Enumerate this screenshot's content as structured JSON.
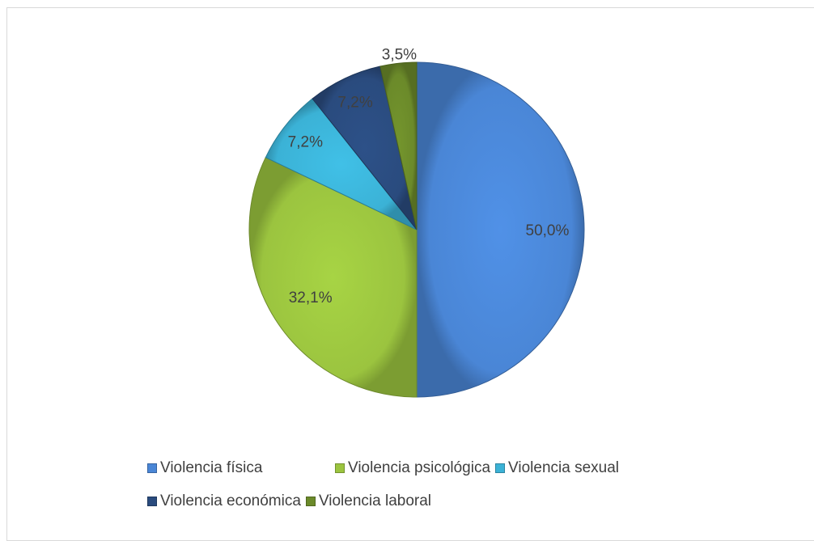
{
  "chart_data": {
    "type": "pie",
    "categories": [
      "Violencia física",
      "Violencia psicológica",
      "Violencia sexual",
      "Violencia económica",
      "Violencia laboral"
    ],
    "values": [
      50.0,
      32.1,
      7.2,
      7.2,
      3.5
    ],
    "labels": [
      "50,0%",
      "32,1%",
      "7,2%",
      "7,2%",
      "3,5%"
    ],
    "colors": [
      "#4a86d6",
      "#9bc43f",
      "#3bb2d6",
      "#2a4b7e",
      "#6b8a2a"
    ],
    "title": "",
    "legend_position": "bottom"
  },
  "legend": {
    "items": [
      {
        "label": "Violencia física",
        "color": "#4a86d6"
      },
      {
        "label": "Violencia psicológica",
        "color": "#9bc43f"
      },
      {
        "label": "Violencia sexual",
        "color": "#3bb2d6"
      },
      {
        "label": "Violencia económica",
        "color": "#2a4b7e"
      },
      {
        "label": "Violencia laboral",
        "color": "#6b8a2a"
      }
    ]
  }
}
